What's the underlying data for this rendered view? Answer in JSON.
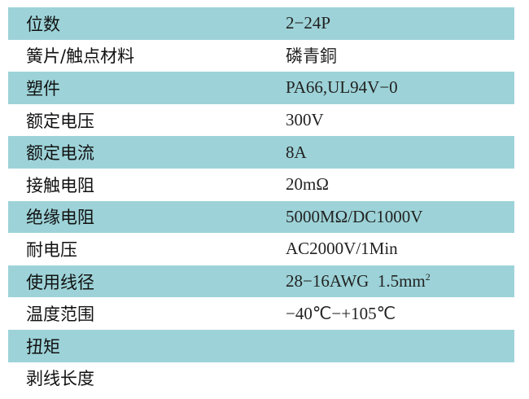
{
  "colors": {
    "stripe": "#9dd3d8",
    "background": "#ffffff"
  },
  "rows": [
    {
      "label": "位数",
      "value": "2−24P"
    },
    {
      "label": "簧片/触点材料",
      "value": "磷青銅"
    },
    {
      "label": "塑件",
      "value": "PA66,UL94V−0"
    },
    {
      "label": "额定电压",
      "value": "300V"
    },
    {
      "label": "额定电流",
      "value": "8A"
    },
    {
      "label": "接触电阻",
      "value": "20mΩ"
    },
    {
      "label": "绝缘电阻",
      "value": "5000MΩ/DC1000V"
    },
    {
      "label": "耐电压",
      "value": "AC2000V/1Min"
    },
    {
      "label": "使用线径",
      "value": "28−16AWG  1.5mm",
      "value_sup": "2"
    },
    {
      "label": "温度范围",
      "value": "−40℃−+105℃"
    },
    {
      "label": "扭矩",
      "value": ""
    },
    {
      "label": "剥线长度",
      "value": ""
    }
  ]
}
